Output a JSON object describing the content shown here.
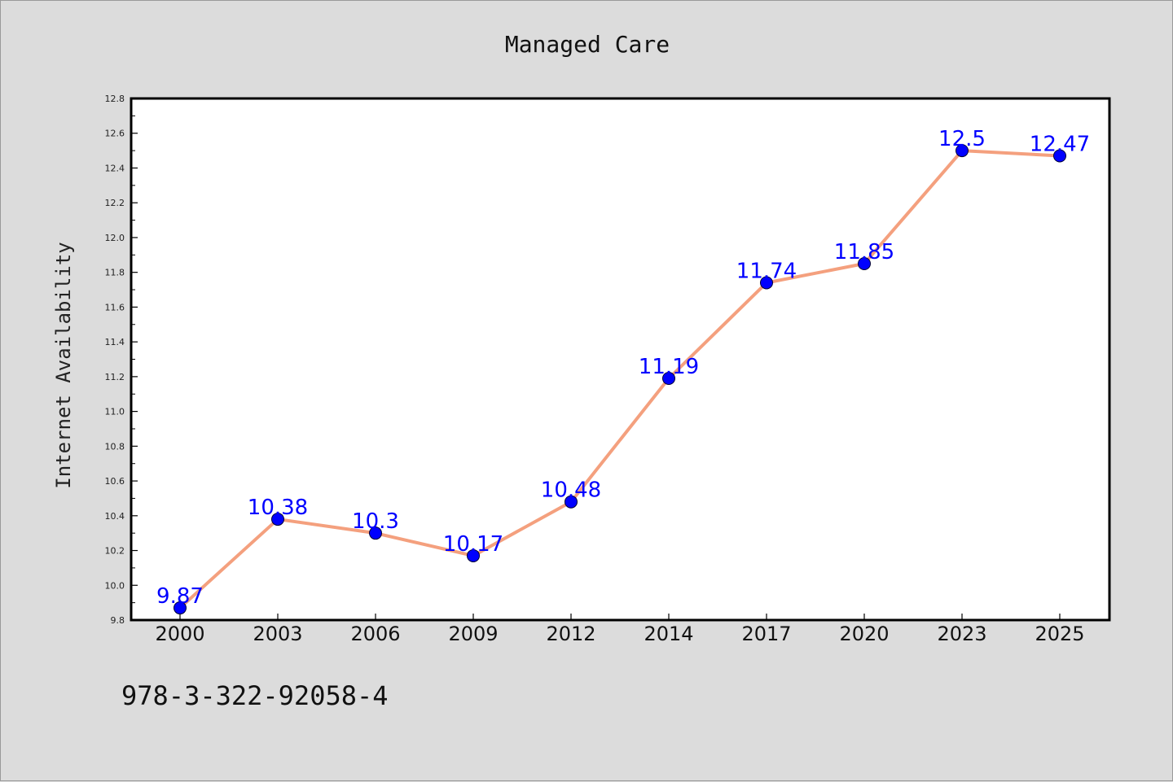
{
  "chart_data": {
    "type": "line",
    "title": "Managed Care",
    "xlabel": "",
    "ylabel": "Internet Availability",
    "categories": [
      "2000",
      "2003",
      "2006",
      "2009",
      "2012",
      "2014",
      "2017",
      "2020",
      "2023",
      "2025"
    ],
    "series": [
      {
        "values": [
          9.87,
          10.38,
          10.3,
          10.17,
          10.48,
          11.19,
          11.74,
          11.85,
          12.5,
          12.47
        ],
        "data_labels": [
          "9.87",
          "10.38",
          "10.3",
          "10.17",
          "10.48",
          "11.19",
          "11.74",
          "11.85",
          "12.5",
          "12.47"
        ]
      }
    ],
    "ylim": [
      9.8,
      12.8
    ],
    "yticks": [
      "9.8",
      "10.0",
      "10.2",
      "10.4",
      "10.6",
      "10.8",
      "11.0",
      "11.2",
      "11.4",
      "11.6",
      "11.8",
      "12.0",
      "12.2",
      "12.4",
      "12.6",
      "12.8"
    ],
    "grid": false,
    "legend": "none",
    "colors": {
      "line": "#f4a07e",
      "marker": "#0000ff",
      "data_label": "#0000ff",
      "plot_background": "#ffffff",
      "figure_background": "#dcdcdc"
    }
  },
  "footnote": "978-3-322-92058-4"
}
